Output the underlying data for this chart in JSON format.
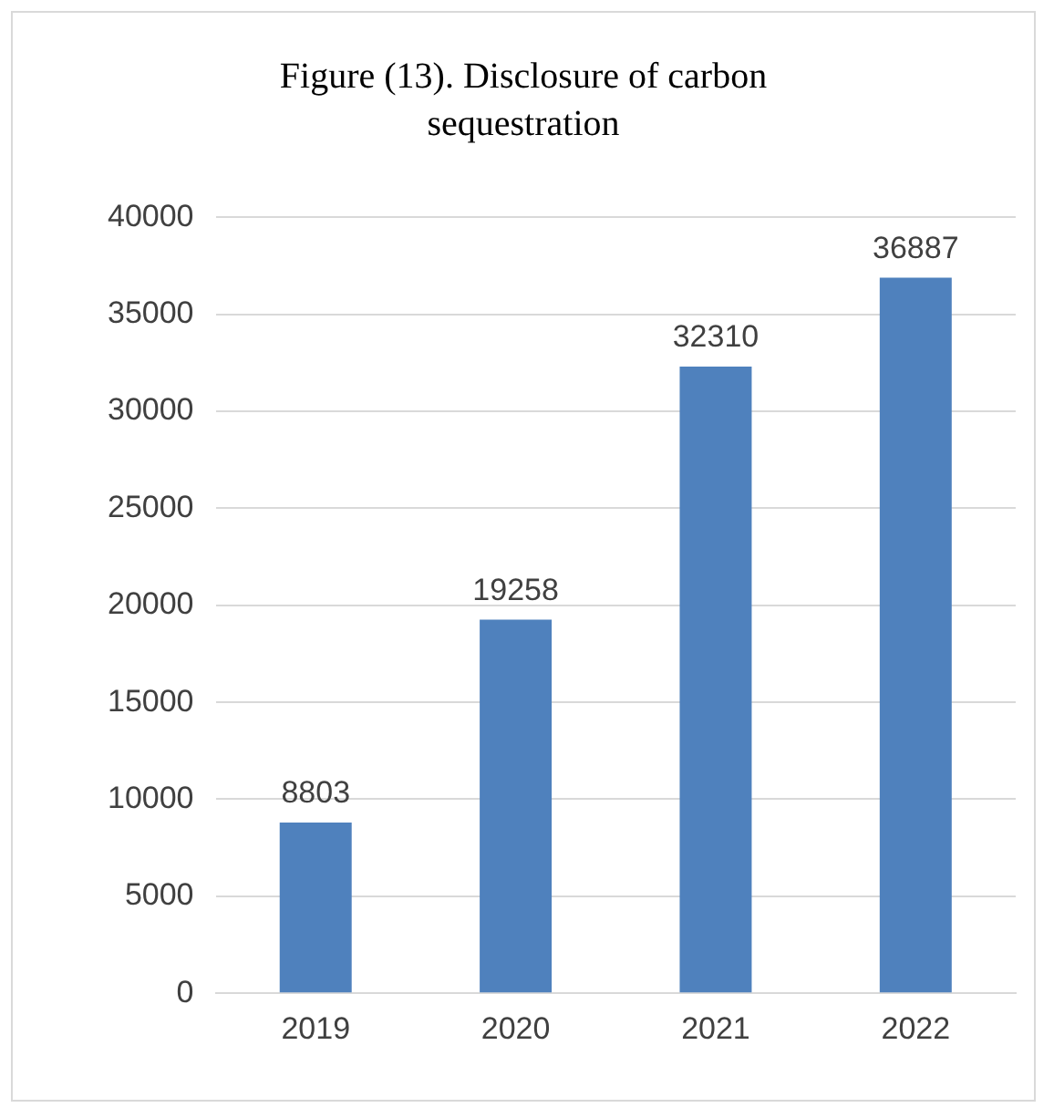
{
  "chart_data": {
    "type": "bar",
    "title": "Figure (13). Disclosure of carbon sequestration",
    "categories": [
      "2019",
      "2020",
      "2021",
      "2022"
    ],
    "values": [
      8803,
      19258,
      32310,
      36887
    ],
    "color": "#4f81bd",
    "ylim": [
      0,
      40000
    ],
    "yticks": [
      0,
      5000,
      10000,
      15000,
      20000,
      25000,
      30000,
      35000,
      40000
    ],
    "grid": "y",
    "data_labels": true,
    "legend": false
  }
}
